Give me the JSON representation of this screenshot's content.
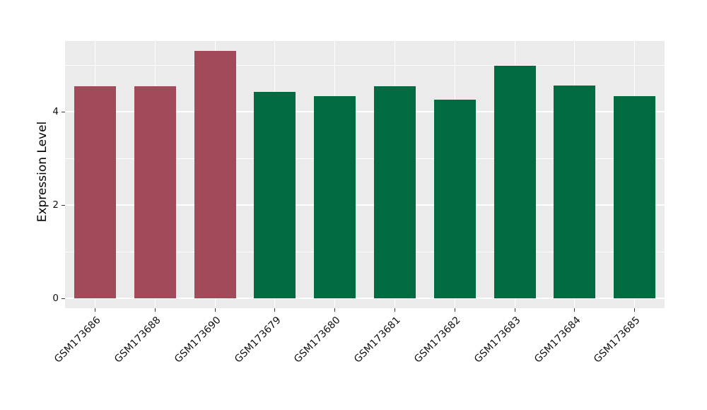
{
  "figure": {
    "background": "#FFFFFF",
    "panel_background": "#EBEBEB",
    "gridline_color": "#FFFFFF",
    "tick_color": "#333333",
    "text_color": "#111111"
  },
  "chart_data": {
    "type": "bar",
    "title": "",
    "xlabel": "",
    "ylabel": "Expression Level",
    "categories": [
      "GSM173686",
      "GSM173688",
      "GSM173690",
      "GSM173679",
      "GSM173680",
      "GSM173681",
      "GSM173682",
      "GSM173683",
      "GSM173684",
      "GSM173685"
    ],
    "values": [
      4.55,
      4.55,
      5.3,
      4.42,
      4.33,
      4.55,
      4.25,
      4.98,
      4.56,
      4.34
    ],
    "colors": [
      "#A14A5A",
      "#A14A5A",
      "#A14A5A",
      "#006B40",
      "#006B40",
      "#006B40",
      "#006B40",
      "#006B40",
      "#006B40",
      "#006B40"
    ],
    "group_colors": {
      "red": "#A14A5A",
      "green": "#006B40"
    },
    "yticks": [
      0,
      2,
      4
    ],
    "ylim": [
      0,
      5.5
    ],
    "grid": true,
    "legend": false,
    "x_tick_rotation_deg": 45
  }
}
